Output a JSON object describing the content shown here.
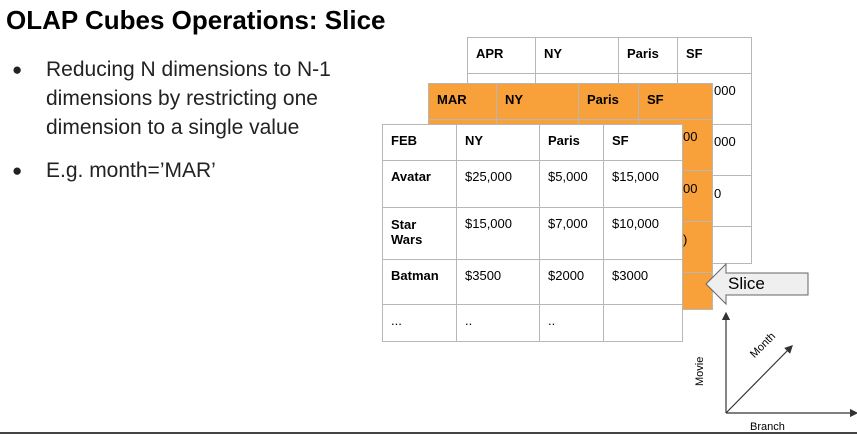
{
  "title": "OLAP Cubes Operations: Slice",
  "bullets": [
    "Reducing N dimensions to N-1 dimensions by restricting one dimension to a single value",
    "E.g. month=’MAR’"
  ],
  "apr_table": {
    "headers": [
      "APR",
      "NY",
      "Paris",
      "SF"
    ],
    "partial_values": [
      "000",
      "000",
      "0"
    ]
  },
  "mar_table": {
    "headers": [
      "MAR",
      "NY",
      "Paris",
      "SF"
    ],
    "partial_values": [
      "00",
      "00",
      ")"
    ]
  },
  "feb_table": {
    "headers": [
      "FEB",
      "NY",
      "Paris",
      "SF"
    ],
    "rows": [
      [
        "Avatar",
        "$25,000",
        "$5,000",
        "$15,000"
      ],
      [
        "Star Wars",
        "$15,000",
        "$7,000",
        "$10,000"
      ],
      [
        "Batman",
        "$3500",
        "$2000",
        "$3000"
      ],
      [
        "...",
        "..",
        "..",
        ""
      ]
    ]
  },
  "slice_label": "Slice",
  "axes": {
    "vertical": "Movie",
    "diagonal": "Month",
    "horizontal": "Branch"
  },
  "colors": {
    "mar_fill": "#f8a03a",
    "grid": "#b7b7b7"
  },
  "icons": [
    "slice-arrow-icon",
    "axes-diagram-icon"
  ]
}
